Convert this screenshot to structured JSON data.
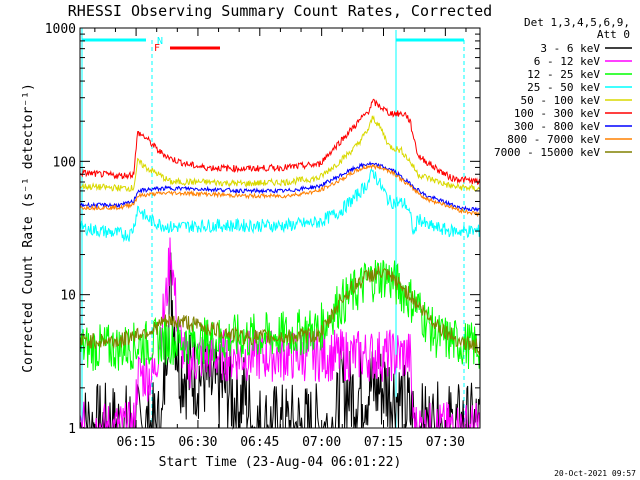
{
  "chart_data": {
    "type": "line",
    "title": "RHESSI Observing Summary Count Rates, Corrected",
    "xlabel": "Start Time (23-Aug-04 06:01:22)",
    "ylabel": "Corrected Count Rate (s⁻¹ detector⁻¹)",
    "y_scale": "log",
    "ylim": [
      1,
      1000
    ],
    "xlim_minutes": [
      0,
      97
    ],
    "x_ticks": [
      {
        "label": "06:15",
        "minute": 13.6
      },
      {
        "label": "06:30",
        "minute": 28.6
      },
      {
        "label": "06:45",
        "minute": 43.6
      },
      {
        "label": "07:00",
        "minute": 58.6
      },
      {
        "label": "07:15",
        "minute": 73.6
      },
      {
        "label": "07:30",
        "minute": 88.6
      }
    ],
    "y_ticks": [
      {
        "label": "1",
        "value": 1
      },
      {
        "label": "10",
        "value": 10
      },
      {
        "label": "100",
        "value": 100
      },
      {
        "label": "1000",
        "value": 1000
      }
    ],
    "legend": {
      "placement": "right",
      "header": [
        "Det 1,3,4,5,6,9,",
        "Att 0"
      ]
    },
    "series": [
      {
        "name": "3 - 6 keV",
        "color": "#000000",
        "points": [
          [
            0,
            1
          ],
          [
            20,
            1
          ],
          [
            21,
            5
          ],
          [
            22,
            12
          ],
          [
            23,
            6
          ],
          [
            24,
            3
          ],
          [
            26,
            2.5
          ],
          [
            30,
            2.5
          ],
          [
            32,
            2
          ],
          [
            36,
            2
          ],
          [
            38,
            1.5
          ],
          [
            40,
            1.8
          ],
          [
            42,
            1
          ],
          [
            55,
            1
          ],
          [
            62,
            1
          ],
          [
            63,
            2
          ],
          [
            66,
            1.8
          ],
          [
            70,
            2
          ],
          [
            74,
            2
          ],
          [
            78,
            1.6
          ],
          [
            80,
            1.3
          ],
          [
            82,
            1
          ],
          [
            97,
            1
          ]
        ]
      },
      {
        "name": "6 - 12 keV",
        "color": "#ff00ff",
        "points": [
          [
            0,
            1
          ],
          [
            13,
            1
          ],
          [
            14,
            2.5
          ],
          [
            18,
            2.5
          ],
          [
            19,
            4
          ],
          [
            21,
            10
          ],
          [
            22,
            23
          ],
          [
            23,
            10
          ],
          [
            24,
            5
          ],
          [
            26,
            3
          ],
          [
            30,
            3.5
          ],
          [
            40,
            3.5
          ],
          [
            60,
            3.5
          ],
          [
            70,
            3.5
          ],
          [
            75,
            3.5
          ],
          [
            80,
            3.5
          ],
          [
            81,
            1
          ],
          [
            97,
            1
          ]
        ]
      },
      {
        "name": "12 - 25 keV",
        "color": "#00ff00",
        "points": [
          [
            0,
            4
          ],
          [
            10,
            4
          ],
          [
            20,
            4.5
          ],
          [
            30,
            4.5
          ],
          [
            40,
            4.8
          ],
          [
            50,
            5
          ],
          [
            58,
            5.5
          ],
          [
            62,
            8
          ],
          [
            66,
            10
          ],
          [
            70,
            13
          ],
          [
            74,
            14
          ],
          [
            78,
            11
          ],
          [
            82,
            8
          ],
          [
            86,
            5
          ],
          [
            90,
            4.5
          ],
          [
            97,
            4
          ]
        ]
      },
      {
        "name": "25 - 50 keV",
        "color": "#00ffff",
        "points": [
          [
            0,
            32
          ],
          [
            5,
            30
          ],
          [
            12,
            28
          ],
          [
            13,
            32
          ],
          [
            14,
            45
          ],
          [
            16,
            38
          ],
          [
            18,
            35
          ],
          [
            22,
            32
          ],
          [
            30,
            33
          ],
          [
            40,
            33
          ],
          [
            50,
            33
          ],
          [
            58,
            35
          ],
          [
            63,
            42
          ],
          [
            67,
            55
          ],
          [
            70,
            70
          ],
          [
            71,
            85
          ],
          [
            73,
            65
          ],
          [
            75,
            50
          ],
          [
            79,
            48
          ],
          [
            80,
            40
          ],
          [
            81,
            28
          ],
          [
            82,
            38
          ],
          [
            84,
            33
          ],
          [
            90,
            30
          ],
          [
            97,
            30
          ]
        ]
      },
      {
        "name": "50 - 100 keV",
        "color": "#d9d900",
        "points": [
          [
            0,
            65
          ],
          [
            10,
            63
          ],
          [
            13,
            63
          ],
          [
            14,
            100
          ],
          [
            16,
            90
          ],
          [
            19,
            80
          ],
          [
            22,
            70
          ],
          [
            30,
            70
          ],
          [
            40,
            68
          ],
          [
            50,
            70
          ],
          [
            58,
            75
          ],
          [
            63,
            100
          ],
          [
            67,
            130
          ],
          [
            70,
            175
          ],
          [
            71,
            215
          ],
          [
            73,
            175
          ],
          [
            75,
            130
          ],
          [
            78,
            120
          ],
          [
            80,
            100
          ],
          [
            82,
            80
          ],
          [
            86,
            72
          ],
          [
            90,
            65
          ],
          [
            97,
            62
          ]
        ]
      },
      {
        "name": "100 - 300 keV",
        "color": "#ff0000",
        "points": [
          [
            0,
            82
          ],
          [
            10,
            78
          ],
          [
            13,
            80
          ],
          [
            14,
            165
          ],
          [
            16,
            150
          ],
          [
            19,
            120
          ],
          [
            22,
            105
          ],
          [
            26,
            95
          ],
          [
            30,
            90
          ],
          [
            40,
            88
          ],
          [
            50,
            90
          ],
          [
            58,
            95
          ],
          [
            63,
            140
          ],
          [
            67,
            190
          ],
          [
            70,
            240
          ],
          [
            71,
            280
          ],
          [
            73,
            255
          ],
          [
            75,
            230
          ],
          [
            79,
            225
          ],
          [
            80,
            200
          ],
          [
            82,
            110
          ],
          [
            86,
            90
          ],
          [
            90,
            75
          ],
          [
            97,
            70
          ]
        ]
      },
      {
        "name": "300 - 800 keV",
        "color": "#0000ff",
        "points": [
          [
            0,
            47
          ],
          [
            10,
            47
          ],
          [
            13,
            50
          ],
          [
            14,
            60
          ],
          [
            18,
            62
          ],
          [
            22,
            63
          ],
          [
            30,
            62
          ],
          [
            40,
            60
          ],
          [
            50,
            60
          ],
          [
            58,
            65
          ],
          [
            63,
            78
          ],
          [
            67,
            90
          ],
          [
            70,
            96
          ],
          [
            73,
            92
          ],
          [
            76,
            85
          ],
          [
            80,
            68
          ],
          [
            84,
            55
          ],
          [
            88,
            50
          ],
          [
            92,
            45
          ],
          [
            97,
            43
          ]
        ]
      },
      {
        "name": "800 - 7000 keV",
        "color": "#ff8000",
        "points": [
          [
            0,
            45
          ],
          [
            10,
            45
          ],
          [
            13,
            48
          ],
          [
            14,
            55
          ],
          [
            18,
            57
          ],
          [
            22,
            58
          ],
          [
            30,
            57
          ],
          [
            40,
            55
          ],
          [
            50,
            55
          ],
          [
            58,
            60
          ],
          [
            63,
            72
          ],
          [
            67,
            85
          ],
          [
            70,
            92
          ],
          [
            73,
            90
          ],
          [
            76,
            82
          ],
          [
            80,
            65
          ],
          [
            84,
            52
          ],
          [
            88,
            48
          ],
          [
            92,
            43
          ],
          [
            97,
            40
          ]
        ]
      },
      {
        "name": "7000 - 15000 keV",
        "color": "#808000",
        "points": [
          [
            0,
            4.5
          ],
          [
            10,
            4.5
          ],
          [
            13,
            5
          ],
          [
            18,
            5.5
          ],
          [
            20,
            6.2
          ],
          [
            25,
            6.3
          ],
          [
            32,
            5.5
          ],
          [
            40,
            4.8
          ],
          [
            50,
            4.8
          ],
          [
            58,
            5
          ],
          [
            60,
            6
          ],
          [
            63,
            9
          ],
          [
            67,
            12
          ],
          [
            70,
            14
          ],
          [
            73,
            14.5
          ],
          [
            76,
            13
          ],
          [
            80,
            10
          ],
          [
            84,
            7
          ],
          [
            88,
            5.5
          ],
          [
            92,
            4.5
          ],
          [
            97,
            4
          ]
        ]
      }
    ],
    "annotations": [
      {
        "label": "N",
        "color": "#00ffff"
      },
      {
        "label": "F",
        "color": "#ff0000"
      }
    ],
    "footer_timestamp": "20-Oct-2021 09:57"
  }
}
